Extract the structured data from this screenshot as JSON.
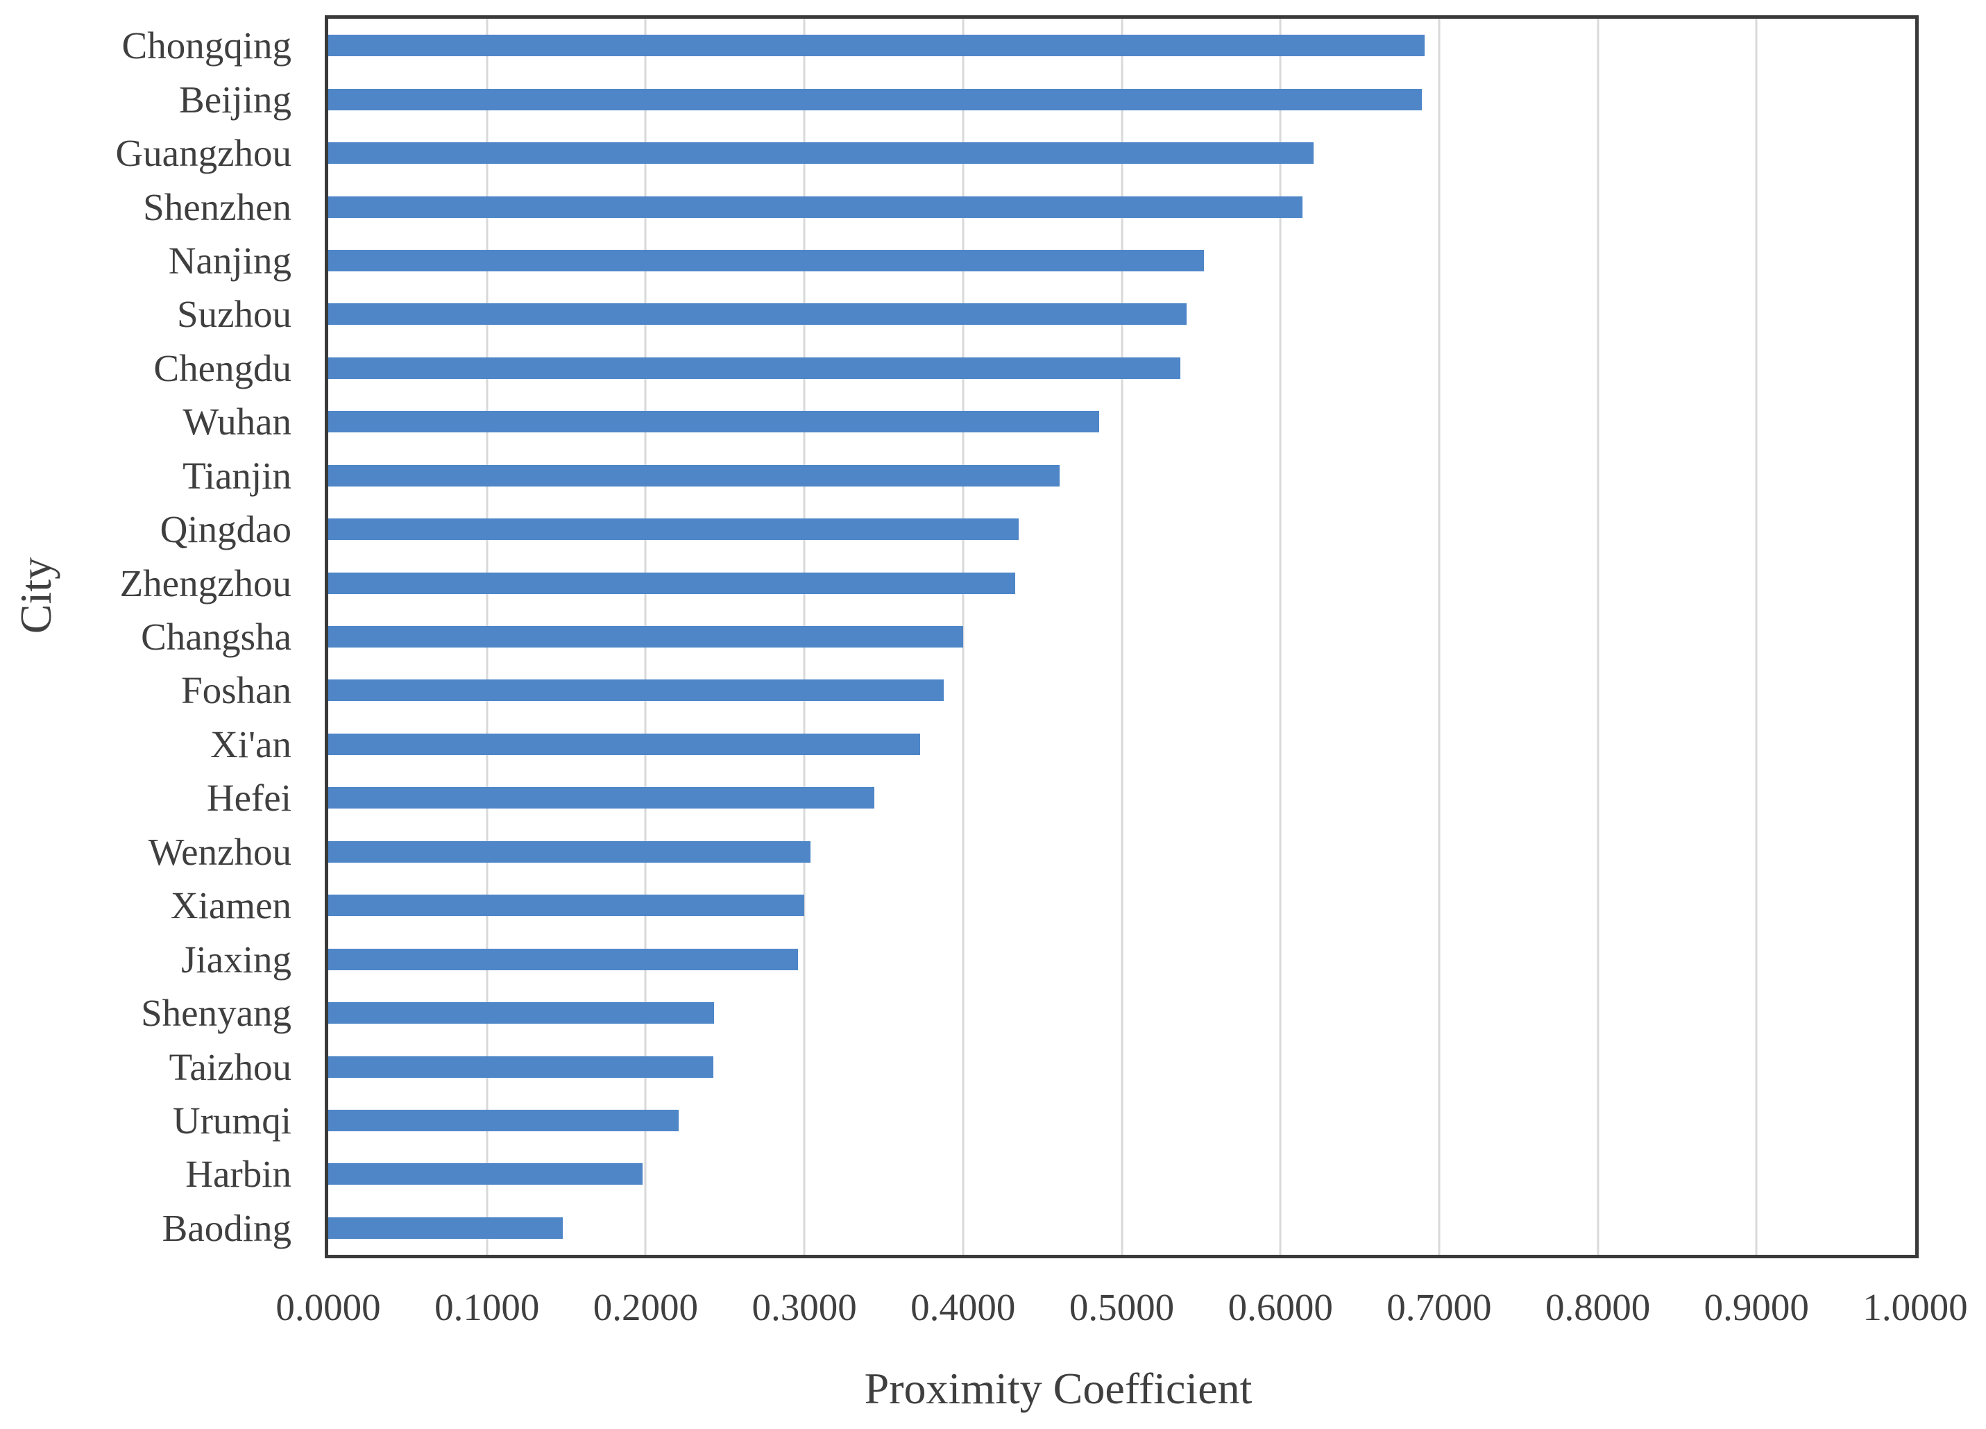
{
  "chart_data": {
    "type": "bar",
    "orientation": "horizontal",
    "title": "",
    "xlabel": "Proximity Coefficient",
    "ylabel": "City",
    "xlim": [
      0.0,
      1.0
    ],
    "grid": "vertical gridlines at 0.1 steps",
    "legend": "none",
    "bar_color": "#4E86C8",
    "grid_color": "#D9D9D9",
    "axis_border_color": "#3A3A3A",
    "text_color": "#3F3F3F",
    "x_tick_values": [
      0.0,
      0.1,
      0.2,
      0.3,
      0.4,
      0.5,
      0.6,
      0.7,
      0.8,
      0.9,
      1.0
    ],
    "x_tick_labels": [
      "0.0000",
      "0.1000",
      "0.2000",
      "0.3000",
      "0.4000",
      "0.5000",
      "0.6000",
      "0.7000",
      "0.8000",
      "0.9000",
      "1.0000"
    ],
    "categories": [
      "Chongqing",
      "Beijing",
      "Guangzhou",
      "Shenzhen",
      "Nanjing",
      "Suzhou",
      "Chengdu",
      "Wuhan",
      "Tianjin",
      "Qingdao",
      "Zhengzhou",
      "Changsha",
      "Foshan",
      "Xi'an",
      "Hefei",
      "Wenzhou",
      "Xiamen",
      "Jiaxing",
      "Shenyang",
      "Taizhou",
      "Urumqi",
      "Harbin",
      "Baoding"
    ],
    "values": [
      0.691,
      0.689,
      0.621,
      0.614,
      0.552,
      0.541,
      0.537,
      0.486,
      0.461,
      0.435,
      0.433,
      0.4,
      0.388,
      0.373,
      0.344,
      0.304,
      0.3,
      0.296,
      0.243,
      0.2425,
      0.221,
      0.198,
      0.148
    ]
  }
}
